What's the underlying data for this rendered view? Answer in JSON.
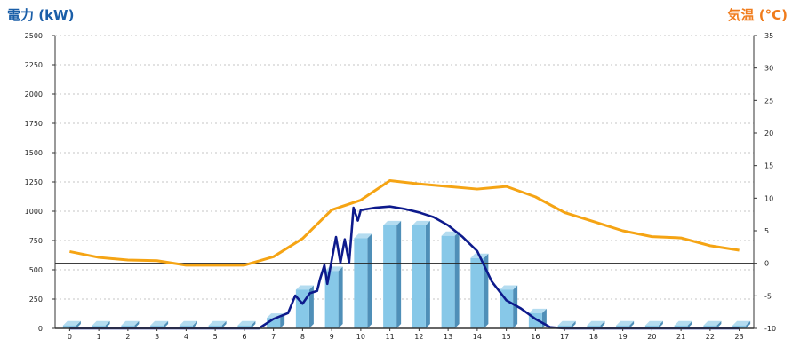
{
  "chart_data": {
    "type": "bar",
    "y_left_label": "電力 (kW)",
    "y_right_label": "気温 (°C)",
    "ylim_left": [
      0,
      2500
    ],
    "ylim_right": [
      -10,
      35
    ],
    "yticks_left": [
      0,
      250,
      500,
      750,
      1000,
      1250,
      1500,
      1750,
      2000,
      2250,
      2500
    ],
    "yticks_right": [
      -10,
      -5,
      0,
      5,
      10,
      15,
      20,
      25,
      30,
      35
    ],
    "yticks_right_labels": [
      "-10",
      "-5",
      "0",
      "5",
      "10",
      "15",
      "20",
      "25",
      "30",
      "35"
    ],
    "categories": [
      "0",
      "1",
      "2",
      "3",
      "4",
      "5",
      "6",
      "7",
      "8",
      "9",
      "10",
      "11",
      "12",
      "13",
      "14",
      "15",
      "16",
      "17",
      "18",
      "19",
      "20",
      "21",
      "22",
      "23"
    ],
    "bar_values": [
      25,
      25,
      25,
      25,
      25,
      25,
      25,
      90,
      330,
      490,
      770,
      880,
      880,
      790,
      600,
      330,
      130,
      25,
      25,
      25,
      25,
      25,
      25,
      25
    ],
    "power_line": [
      [
        0,
        0
      ],
      [
        6.5,
        0
      ],
      [
        7,
        80
      ],
      [
        7.5,
        130
      ],
      [
        7.75,
        280
      ],
      [
        8,
        210
      ],
      [
        8.25,
        300
      ],
      [
        8.5,
        320
      ],
      [
        8.6,
        420
      ],
      [
        8.75,
        540
      ],
      [
        8.85,
        380
      ],
      [
        9,
        580
      ],
      [
        9.15,
        780
      ],
      [
        9.3,
        560
      ],
      [
        9.45,
        760
      ],
      [
        9.6,
        560
      ],
      [
        9.75,
        1030
      ],
      [
        9.9,
        920
      ],
      [
        10,
        1010
      ],
      [
        10.25,
        1020
      ],
      [
        10.5,
        1030
      ],
      [
        11,
        1040
      ],
      [
        11.5,
        1020
      ],
      [
        12,
        990
      ],
      [
        12.5,
        950
      ],
      [
        13,
        880
      ],
      [
        13.5,
        780
      ],
      [
        14,
        660
      ],
      [
        14.25,
        530
      ],
      [
        14.5,
        400
      ],
      [
        14.75,
        320
      ],
      [
        15,
        240
      ],
      [
        15.5,
        170
      ],
      [
        16,
        80
      ],
      [
        16.5,
        10
      ],
      [
        17,
        0
      ],
      [
        23,
        0
      ]
    ],
    "temp_line": [
      [
        0,
        1.8
      ],
      [
        1,
        0.9
      ],
      [
        2,
        0.5
      ],
      [
        3,
        0.4
      ],
      [
        4,
        -0.3
      ],
      [
        5,
        -0.3
      ],
      [
        6,
        -0.3
      ],
      [
        7,
        1
      ],
      [
        8,
        3.8
      ],
      [
        9,
        8.2
      ],
      [
        10,
        9.7
      ],
      [
        11,
        12.7
      ],
      [
        12,
        12.2
      ],
      [
        13,
        11.8
      ],
      [
        14,
        11.4
      ],
      [
        15,
        11.8
      ],
      [
        16,
        10.2
      ],
      [
        17,
        7.8
      ],
      [
        18,
        6.4
      ],
      [
        19,
        5
      ],
      [
        20,
        4.1
      ],
      [
        21,
        3.9
      ],
      [
        22,
        2.7
      ],
      [
        23,
        2
      ]
    ],
    "colors": {
      "bar_face": "#87c8e8",
      "bar_side": "#4f8fb8",
      "bar_top": "#b4dcf0",
      "power_line": "#0d1a8c",
      "temp_line": "#f5a414",
      "grid": "#b4b4b4",
      "left_title": "#1a5ea8",
      "right_title": "#f07c1c"
    },
    "grid": true
  }
}
